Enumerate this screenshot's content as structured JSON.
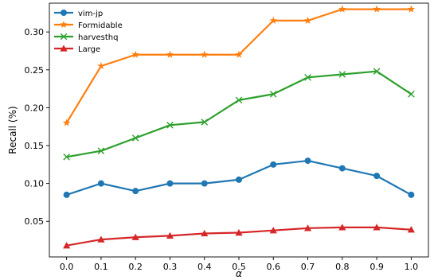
{
  "chart_data": {
    "type": "line",
    "title": "",
    "xlabel": "α",
    "ylabel": "Recall (%)",
    "x": [
      0.0,
      0.1,
      0.2,
      0.3,
      0.4,
      0.5,
      0.6,
      0.7,
      0.8,
      0.9,
      1.0
    ],
    "xticks": [
      "0.0",
      "0.1",
      "0.2",
      "0.3",
      "0.4",
      "0.5",
      "0.6",
      "0.7",
      "0.8",
      "0.9",
      "1.0"
    ],
    "yticks": [
      "0.05",
      "0.10",
      "0.15",
      "0.20",
      "0.25",
      "0.30"
    ],
    "ytick_values": [
      0.05,
      0.1,
      0.15,
      0.2,
      0.25,
      0.3
    ],
    "xlim": [
      -0.05,
      1.05
    ],
    "ylim": [
      0.003,
      0.338
    ],
    "grid": false,
    "legend_position": "top-left",
    "series": [
      {
        "name": "vim-jp",
        "color": "#1f77b4",
        "marker": "circle",
        "values": [
          0.085,
          0.1,
          0.09,
          0.1,
          0.1,
          0.105,
          0.125,
          0.13,
          0.12,
          0.11,
          0.085
        ]
      },
      {
        "name": "Formidable",
        "color": "#ff7f0e",
        "marker": "star",
        "values": [
          0.18,
          0.255,
          0.27,
          0.27,
          0.27,
          0.27,
          0.315,
          0.315,
          0.33,
          0.33,
          0.33
        ]
      },
      {
        "name": "harvesthq",
        "color": "#2ca02c",
        "marker": "x",
        "values": [
          0.135,
          0.143,
          0.16,
          0.177,
          0.181,
          0.21,
          0.218,
          0.24,
          0.244,
          0.248,
          0.218
        ]
      },
      {
        "name": "Large",
        "color": "#d62728",
        "marker": "triangle",
        "values": [
          0.018,
          0.026,
          0.029,
          0.031,
          0.034,
          0.035,
          0.038,
          0.041,
          0.042,
          0.042,
          0.039
        ]
      }
    ]
  }
}
